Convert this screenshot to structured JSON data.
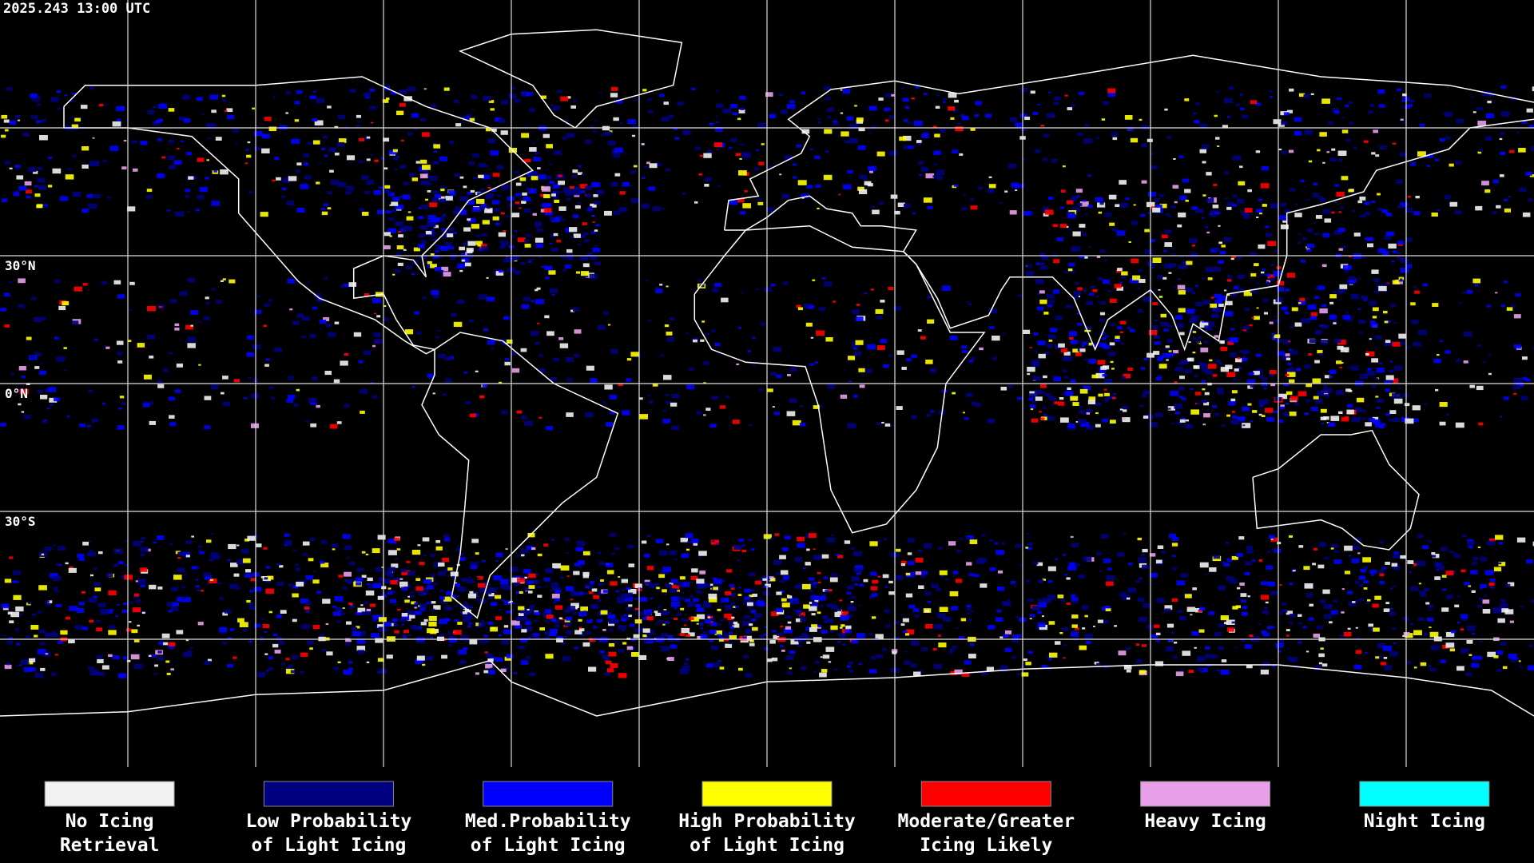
{
  "header": {
    "title": "2025.243 13:00 UTC"
  },
  "map": {
    "lat_labels": [
      "30°N",
      "0°N",
      "30°S"
    ]
  },
  "legend": {
    "items": [
      {
        "color": "#f2f2f2",
        "label": [
          "No Icing",
          "Retrieval"
        ]
      },
      {
        "color": "#000080",
        "label": [
          "Low Probability",
          "of Light Icing"
        ]
      },
      {
        "color": "#0000ff",
        "label": [
          "Med.Probability",
          "of Light Icing"
        ]
      },
      {
        "color": "#ffff00",
        "label": [
          "High Probability",
          "of Light Icing"
        ]
      },
      {
        "color": "#ff0000",
        "label": [
          "Moderate/Greater",
          "Icing Likely"
        ]
      },
      {
        "color": "#e8a0e8",
        "label": [
          "Heavy Icing"
        ]
      },
      {
        "color": "#00ffff",
        "label": [
          "Night Icing"
        ]
      }
    ]
  }
}
